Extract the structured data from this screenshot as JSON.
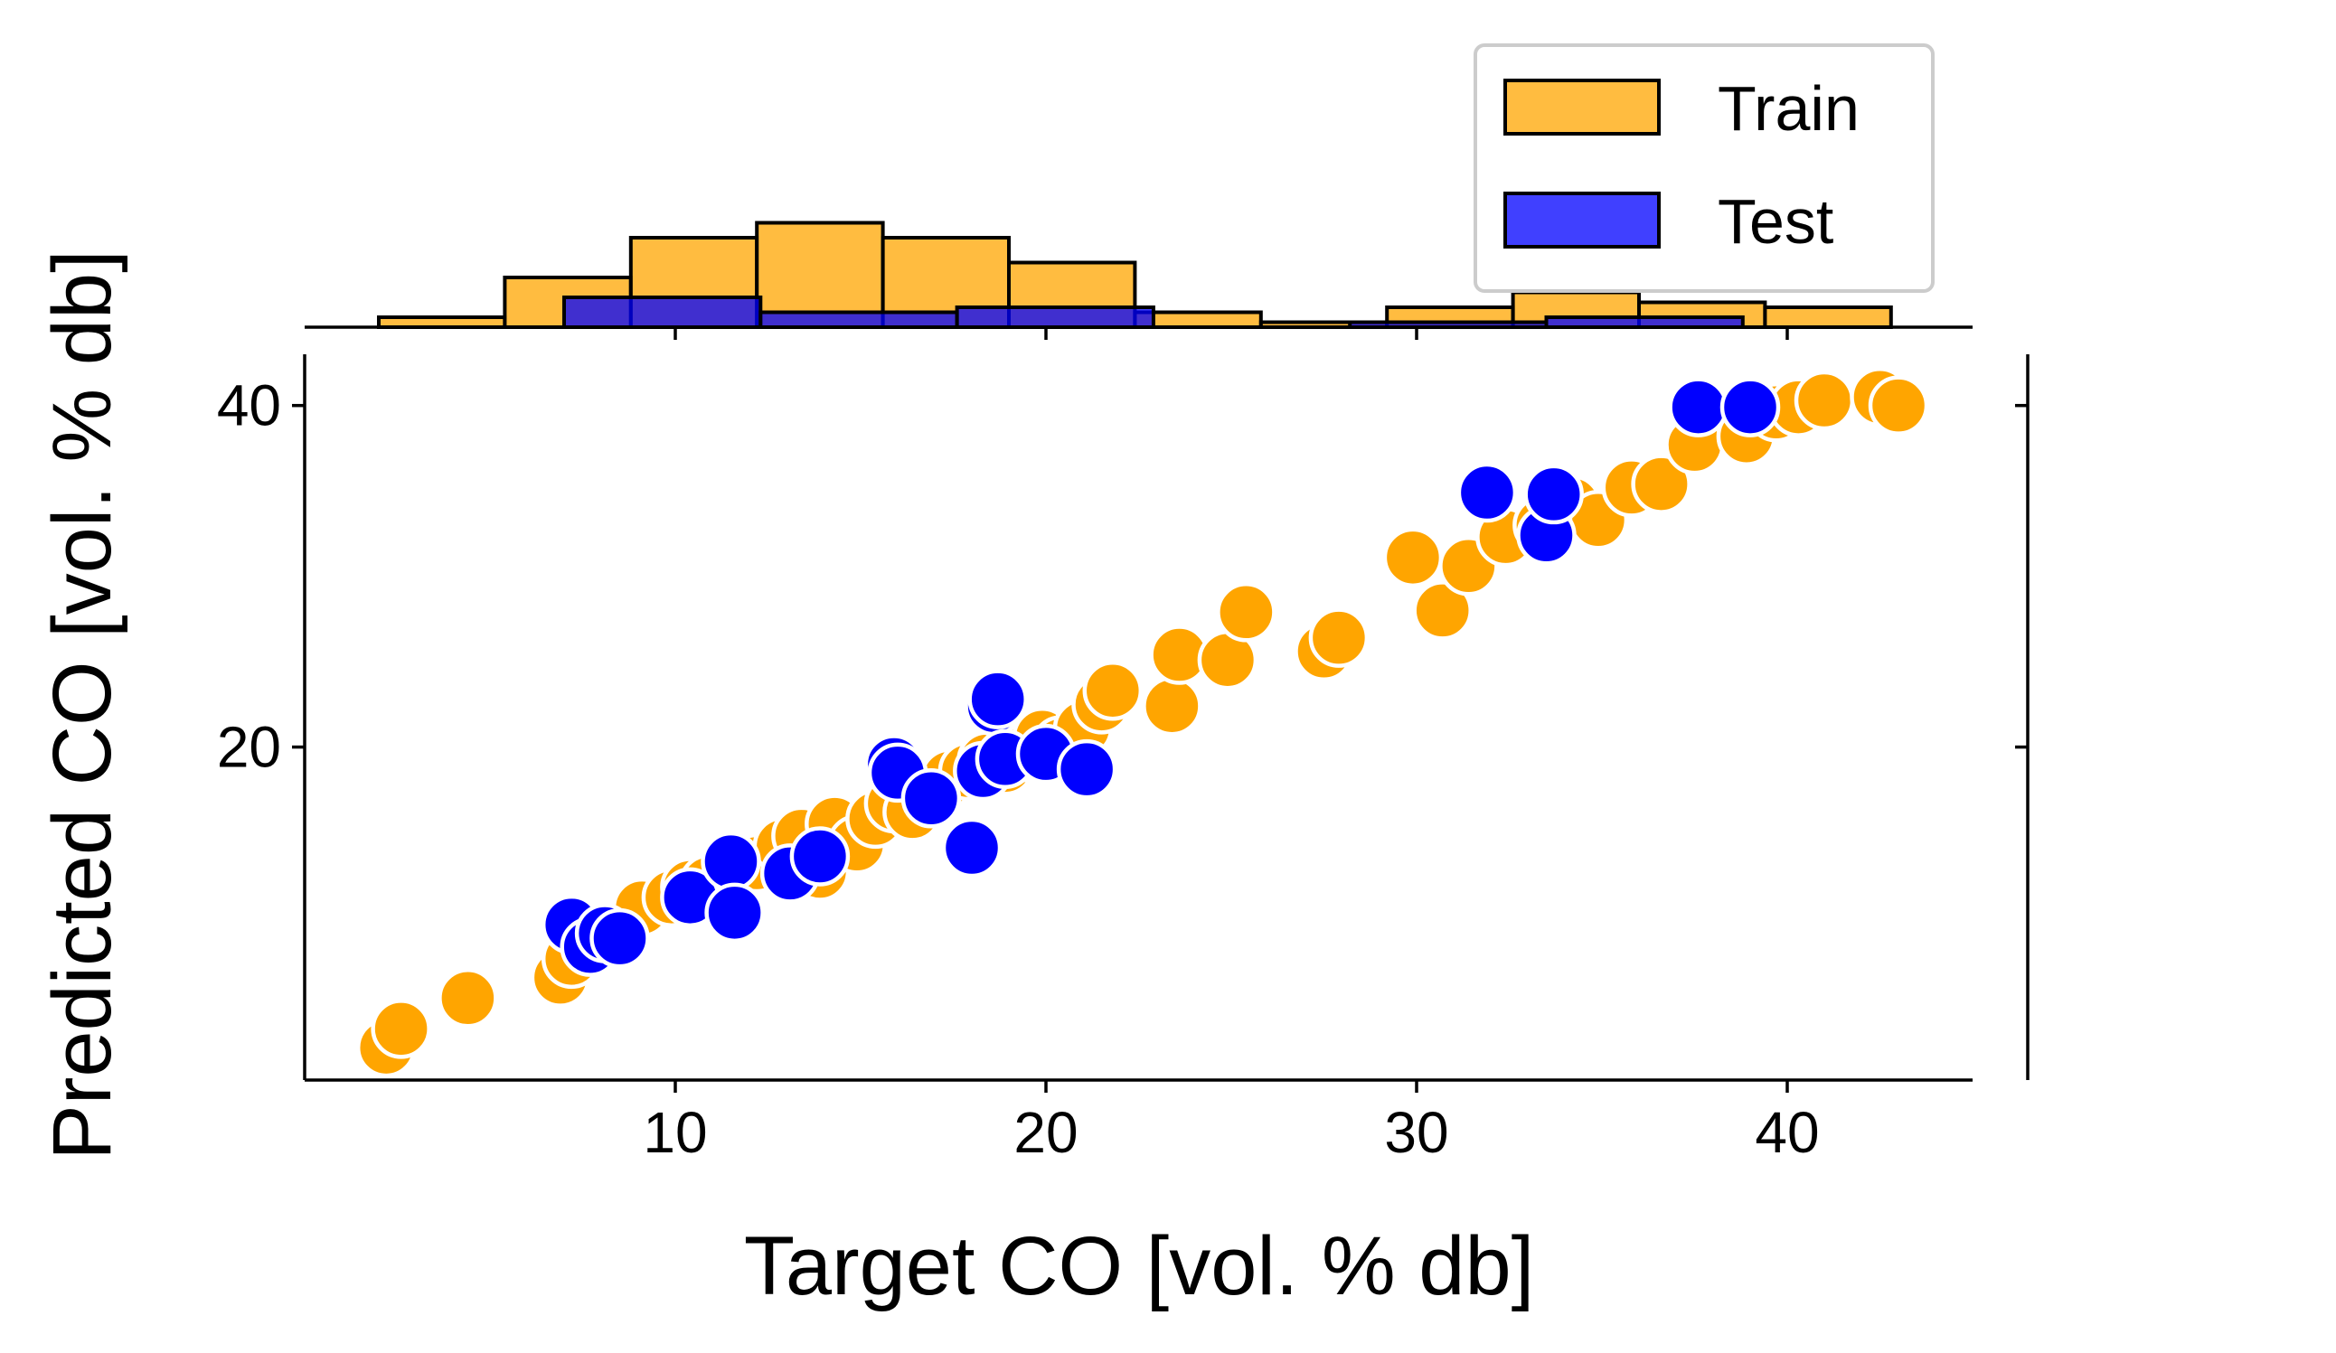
{
  "colors": {
    "train": "#FFA500",
    "test": "#0000FF",
    "edge": "#000000",
    "marker_edge": "#FFFFFF"
  },
  "chart_data": {
    "type": "scatter",
    "title": "",
    "xlabel": "Target CO [vol. % db]",
    "ylabel": "Predicted CO [vol. % db]",
    "xlim": [
      0,
      45
    ],
    "ylim": [
      0.5,
      43
    ],
    "xticks": [
      10,
      20,
      30,
      40
    ],
    "yticks": [
      20,
      40
    ],
    "grid": false,
    "legend": {
      "placement": "top-right",
      "entries": [
        "Train",
        "Test"
      ]
    },
    "series": [
      {
        "name": "Train",
        "x": [
          2.2,
          2.6,
          4.4,
          6.9,
          7.2,
          7.8,
          8.6,
          9.1,
          9.9,
          10.4,
          10.9,
          11.6,
          12.2,
          12.9,
          13.4,
          13.9,
          14.3,
          14.9,
          15.4,
          15.9,
          16.4,
          16.9,
          17.4,
          17.9,
          18.4,
          18.9,
          19.4,
          19.9,
          20.4,
          21.0,
          21.5,
          21.8,
          23.4,
          23.6,
          24.9,
          25.4,
          27.5,
          27.9,
          29.9,
          30.7,
          31.4,
          32.4,
          33.4,
          34.2,
          34.9,
          35.8,
          36.6,
          37.5,
          38.9,
          39.7,
          40.3,
          41.0,
          42.5,
          43.0
        ],
        "y": [
          2.4,
          3.5,
          5.3,
          6.5,
          7.6,
          8.6,
          9.4,
          10.6,
          11.2,
          11.8,
          12.0,
          12.8,
          13.2,
          14.2,
          14.8,
          12.7,
          15.5,
          14.3,
          15.8,
          16.7,
          16.2,
          17.4,
          18.2,
          18.6,
          19.2,
          18.9,
          19.7,
          20.6,
          20.1,
          21.1,
          22.5,
          23.3,
          22.4,
          25.4,
          25.1,
          27.9,
          25.6,
          26.4,
          31.1,
          28.0,
          30.6,
          32.3,
          33.0,
          34.2,
          33.3,
          35.2,
          35.4,
          37.7,
          38.2,
          39.6,
          39.9,
          40.3,
          40.5,
          40.0
        ]
      },
      {
        "name": "Test",
        "x": [
          7.2,
          7.7,
          8.1,
          8.5,
          10.4,
          11.5,
          11.6,
          13.1,
          13.9,
          15.9,
          16.0,
          16.9,
          18.0,
          18.3,
          18.6,
          18.7,
          18.9,
          20.0,
          21.1,
          31.9,
          33.5,
          33.7,
          37.6,
          39.0
        ],
        "y": [
          9.6,
          8.3,
          9.1,
          8.8,
          11.2,
          13.3,
          10.3,
          12.6,
          13.6,
          19.0,
          18.5,
          17.0,
          14.1,
          18.6,
          22.4,
          22.8,
          19.3,
          19.6,
          18.7,
          34.9,
          32.4,
          34.8,
          39.9,
          39.9
        ]
      }
    ],
    "histogram": {
      "bins": [
        2.0,
        5.4,
        8.8,
        12.2,
        15.6,
        19.0,
        22.4,
        25.8,
        29.2,
        32.6,
        36.0,
        39.4,
        42.8
      ],
      "train_counts": [
        2,
        10,
        18,
        21,
        18,
        13,
        3,
        1,
        4,
        7,
        5,
        4
      ],
      "test_bins": [
        7.0,
        12.3,
        17.6,
        22.9,
        28.2,
        33.5,
        38.8
      ],
      "test_counts": [
        6,
        3,
        4,
        0,
        1,
        2
      ]
    }
  }
}
